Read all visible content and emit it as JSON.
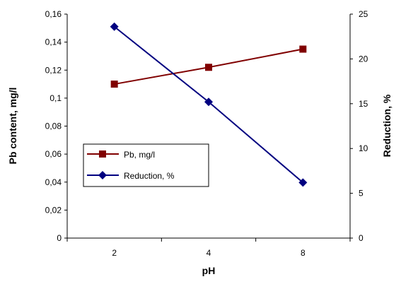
{
  "chart_data": {
    "type": "line",
    "title": "",
    "categories": [
      "2",
      "4",
      "8"
    ],
    "xlabel": "pH",
    "ylabel_left": "Pb content, mg/l",
    "ylabel_right": "Reduction, %",
    "ylim_left": [
      0,
      0.16
    ],
    "yticks_left": [
      "0",
      "0,02",
      "0,04",
      "0,06",
      "0,08",
      "0,1",
      "0,12",
      "0,14",
      "0,16"
    ],
    "ylim_right": [
      0,
      25
    ],
    "yticks_right": [
      "0",
      "5",
      "10",
      "15",
      "20",
      "25"
    ],
    "grid": false,
    "legend_position": "center-left",
    "series": [
      {
        "name": "Pb, mg/l",
        "axis": "left",
        "values": [
          0.11,
          0.122,
          0.135
        ],
        "color": "#800000",
        "marker": "square"
      },
      {
        "name": "Reduction, %",
        "axis": "right",
        "values": [
          23.6,
          15.2,
          6.2
        ],
        "color": "#000080",
        "marker": "diamond"
      }
    ]
  }
}
